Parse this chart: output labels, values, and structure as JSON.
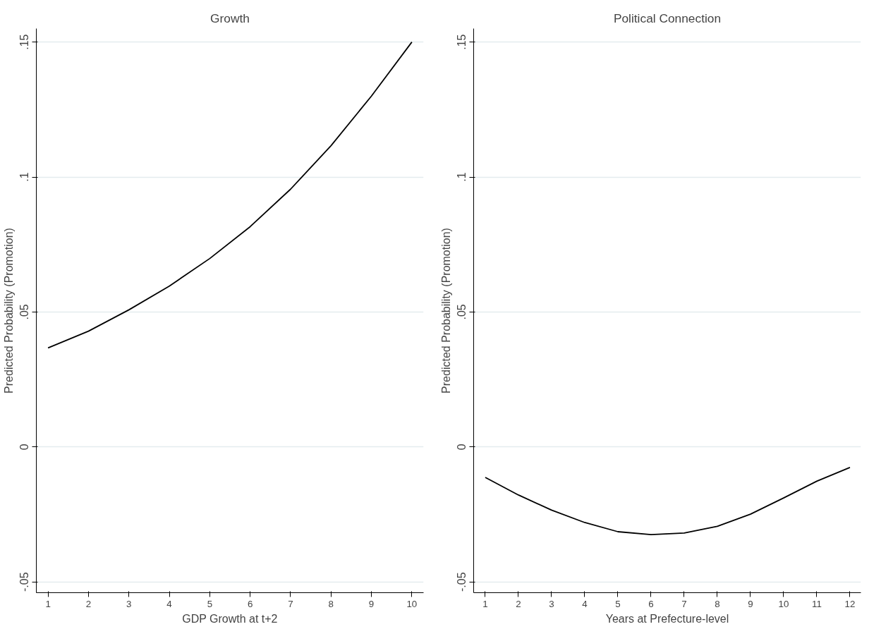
{
  "chart_data": [
    {
      "type": "line",
      "title": "Growth",
      "xlabel": "GDP Growth at t+2",
      "ylabel": "Predicted Probability (Promotion)",
      "x": [
        1,
        2,
        3,
        4,
        5,
        6,
        7,
        8,
        9,
        10
      ],
      "series": [
        {
          "color": "#000000",
          "values": [
            0.0367,
            0.0429,
            0.0508,
            0.0596,
            0.0698,
            0.0816,
            0.0955,
            0.1116,
            0.13,
            0.15
          ]
        }
      ],
      "xlim": [
        0.71,
        10.29
      ],
      "xticks": [
        1,
        2,
        3,
        4,
        5,
        6,
        7,
        8,
        9,
        10
      ],
      "ylim": [
        -0.054,
        0.155
      ],
      "yticks": [
        {
          "value": -0.05,
          "label": "-.05"
        },
        {
          "value": 0,
          "label": "0"
        },
        {
          "value": 0.05,
          "label": ".05"
        },
        {
          "value": 0.1,
          "label": ".1"
        },
        {
          "value": 0.15,
          "label": ".15"
        }
      ],
      "grid": "y",
      "marker": "none",
      "line_style": "solid"
    },
    {
      "type": "line",
      "title": "Political Connection",
      "xlabel": "Years at Prefecture-level",
      "ylabel": "Predicted Probability (Promotion)",
      "x": [
        1,
        2,
        3,
        4,
        5,
        6,
        7,
        8,
        9,
        10,
        11,
        12
      ],
      "series": [
        {
          "color": "#000000",
          "values": [
            -0.0113,
            -0.0178,
            -0.0234,
            -0.028,
            -0.0314,
            -0.0325,
            -0.0319,
            -0.0294,
            -0.0249,
            -0.0189,
            -0.0127,
            -0.0076
          ]
        }
      ],
      "xlim": [
        0.65,
        12.33
      ],
      "xticks": [
        1,
        2,
        3,
        4,
        5,
        6,
        7,
        8,
        9,
        10,
        11,
        12
      ],
      "ylim": [
        -0.054,
        0.155
      ],
      "yticks": [
        {
          "value": -0.05,
          "label": "-.05"
        },
        {
          "value": 0,
          "label": "0"
        },
        {
          "value": 0.05,
          "label": ".05"
        },
        {
          "value": 0.1,
          "label": ".1"
        },
        {
          "value": 0.15,
          "label": ".15"
        }
      ],
      "grid": "y",
      "marker": "none",
      "line_style": "solid"
    }
  ]
}
